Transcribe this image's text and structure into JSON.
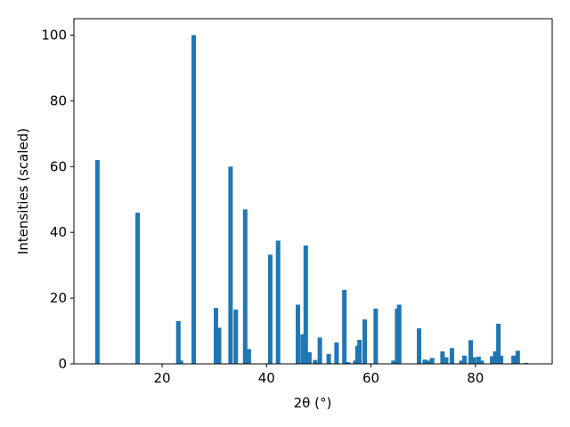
{
  "chart_data": {
    "type": "bar",
    "x_label": "2θ (°)",
    "y_label": "Intensities (scaled)",
    "color": "#1f77b4",
    "x": [
      7.6,
      15.3,
      23.1,
      23.6,
      26.05,
      30.3,
      30.9,
      33.1,
      34.1,
      35.9,
      36.6,
      40.7,
      42.2,
      46.0,
      46.9,
      47.5,
      48.2,
      49.3,
      50.2,
      51.9,
      53.4,
      54.9,
      55.6,
      57.0,
      57.4,
      57.8,
      58.8,
      60.9,
      64.3,
      65.0,
      65.4,
      69.2,
      70.3,
      71.0,
      71.7,
      73.7,
      74.4,
      75.5,
      77.3,
      77.9,
      79.1,
      79.7,
      80.6,
      81.2,
      83.2,
      83.8,
      84.4,
      84.9,
      87.3,
      88.1,
      89.7
    ],
    "values": [
      62,
      46,
      13,
      1,
      100,
      17,
      11,
      60,
      16.5,
      47,
      4.5,
      33.2,
      37.5,
      18,
      9,
      36,
      3.5,
      1.2,
      8,
      3,
      6.5,
      22.5,
      0.5,
      1,
      5.5,
      7.3,
      13.5,
      16.8,
      1,
      16.8,
      18,
      10.8,
      1.3,
      1,
      1.8,
      3.8,
      2,
      4.8,
      1,
      2.5,
      7.2,
      2,
      2.2,
      1,
      2.3,
      3.8,
      12.2,
      2.5,
      2.5,
      4,
      0.3
    ],
    "xlim": [
      3.1,
      94.7
    ],
    "ylim": [
      0,
      105
    ],
    "xticks": [
      20,
      40,
      60,
      80
    ],
    "yticks": [
      0,
      20,
      40,
      60,
      80,
      100
    ]
  }
}
